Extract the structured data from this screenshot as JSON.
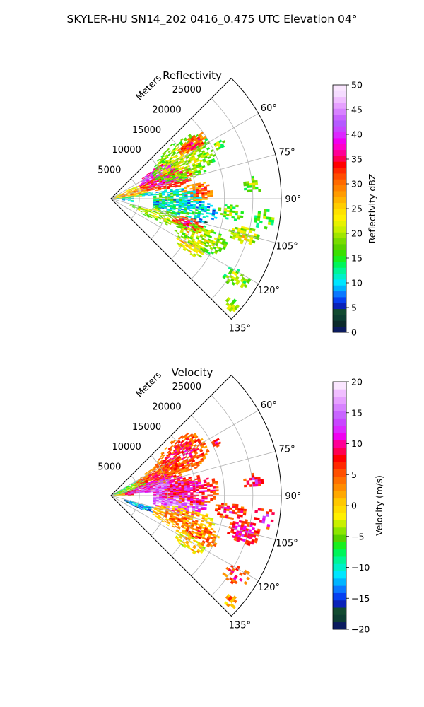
{
  "figure": {
    "title": "SKYLER-HU  SN14_202  0416_0.475 UTC Elevation 04°"
  },
  "chart_data": [
    {
      "type": "heatmap",
      "subtype": "polar-sector-ppi",
      "title": "Reflectivity",
      "range_axis_label": "Meters",
      "range_ticks": [
        5000,
        10000,
        15000,
        20000,
        25000
      ],
      "range_max": 30000,
      "azimuth_range_deg": [
        45,
        135
      ],
      "azimuth_ticks": [
        "60°",
        "75°",
        "90°",
        "105°",
        "120°",
        "135°"
      ],
      "azimuth_tick_values": [
        60,
        75,
        90,
        105,
        120,
        135
      ],
      "grid": true,
      "colorbar": {
        "label": "Reflectivity dBZ",
        "min": 0,
        "max": 50,
        "ticks": [
          0,
          5,
          10,
          15,
          20,
          25,
          30,
          35,
          40,
          45,
          50
        ],
        "colors": [
          "#0b1b5e",
          "#0b2a2a",
          "#0d3d32",
          "#124a30",
          "#0a22b8",
          "#0640f0",
          "#0a78ff",
          "#00b4ff",
          "#00e6ff",
          "#00f0c8",
          "#00f596",
          "#00f55a",
          "#19ef1e",
          "#3ae000",
          "#58d200",
          "#78dc00",
          "#a0e600",
          "#c8f000",
          "#e6f200",
          "#fff000",
          "#ffe100",
          "#ffcd00",
          "#ffb400",
          "#ff9b00",
          "#ff8200",
          "#ff6a00",
          "#ff4b00",
          "#ff2800",
          "#ff0000",
          "#ff0050",
          "#ff0096",
          "#ff00c8",
          "#f000f0",
          "#dc28ff",
          "#c846ff",
          "#b45aff",
          "#c864ff",
          "#d782ff",
          "#e6a0ff",
          "#f0beff",
          "#f5dcff",
          "#fae6ff"
        ]
      },
      "echoes": [
        {
          "r": 3000,
          "az": 75,
          "dr": 4000,
          "daz": 12,
          "value": 28,
          "density": 0.8
        },
        {
          "r": 9000,
          "az": 63,
          "dr": 4000,
          "daz": 8,
          "value": 42,
          "density": 0.95
        },
        {
          "r": 10000,
          "az": 72,
          "dr": 5000,
          "daz": 8,
          "value": 37,
          "density": 0.9
        },
        {
          "r": 14000,
          "az": 62,
          "dr": 6000,
          "daz": 14,
          "value": 22,
          "density": 0.7
        },
        {
          "r": 17000,
          "az": 56,
          "dr": 3000,
          "daz": 4,
          "value": 34,
          "density": 0.9
        },
        {
          "r": 15000,
          "az": 85,
          "dr": 3000,
          "daz": 6,
          "value": 33,
          "density": 0.8
        },
        {
          "r": 8000,
          "az": 90,
          "dr": 8000,
          "daz": 10,
          "value": 15,
          "density": 0.7
        },
        {
          "r": 12000,
          "az": 98,
          "dr": 7000,
          "daz": 8,
          "value": 13,
          "density": 0.6
        },
        {
          "r": 8000,
          "az": 108,
          "dr": 5000,
          "daz": 8,
          "value": 22,
          "density": 0.6
        },
        {
          "r": 14000,
          "az": 108,
          "dr": 3000,
          "daz": 5,
          "value": 36,
          "density": 0.9
        },
        {
          "r": 17000,
          "az": 113,
          "dr": 5000,
          "daz": 7,
          "value": 22,
          "density": 0.6
        },
        {
          "r": 16000,
          "az": 121,
          "dr": 3000,
          "daz": 4,
          "value": 26,
          "density": 0.7
        },
        {
          "r": 24000,
          "az": 105,
          "dr": 3000,
          "daz": 4,
          "value": 24,
          "density": 0.7
        },
        {
          "r": 21000,
          "az": 96,
          "dr": 2500,
          "daz": 4,
          "value": 20,
          "density": 0.6
        },
        {
          "r": 27000,
          "az": 97,
          "dr": 2000,
          "daz": 4,
          "value": 20,
          "density": 0.5
        },
        {
          "r": 25000,
          "az": 84,
          "dr": 2000,
          "daz": 3,
          "value": 20,
          "density": 0.5
        },
        {
          "r": 26000,
          "az": 122,
          "dr": 2500,
          "daz": 4,
          "value": 20,
          "density": 0.6
        },
        {
          "r": 28000,
          "az": 131,
          "dr": 1500,
          "daz": 2,
          "value": 22,
          "density": 0.8
        },
        {
          "r": 21000,
          "az": 63,
          "dr": 1500,
          "daz": 2,
          "value": 20,
          "density": 0.6
        }
      ],
      "clear_holes": [
        {
          "r": 5500,
          "az": 95,
          "dr": 2000,
          "daz": 10
        }
      ]
    },
    {
      "type": "heatmap",
      "subtype": "polar-sector-ppi",
      "title": "Velocity",
      "range_axis_label": "Meters",
      "range_ticks": [
        5000,
        10000,
        15000,
        20000,
        25000
      ],
      "range_max": 30000,
      "azimuth_range_deg": [
        45,
        135
      ],
      "azimuth_ticks": [
        "60°",
        "75°",
        "90°",
        "105°",
        "120°",
        "135°"
      ],
      "azimuth_tick_values": [
        60,
        75,
        90,
        105,
        120,
        135
      ],
      "grid": true,
      "colorbar": {
        "label": "Velocity (m/s)",
        "min": -20,
        "max": 20,
        "ticks": [
          -20,
          -15,
          -10,
          -5,
          0,
          5,
          10,
          15,
          20
        ],
        "colors": [
          "#0b1b5e",
          "#0d3d32",
          "#124a30",
          "#0a22b8",
          "#0640f0",
          "#0a78ff",
          "#00b4ff",
          "#00e6ff",
          "#00f0c8",
          "#00f596",
          "#00f55a",
          "#19ef1e",
          "#58d200",
          "#8ce600",
          "#c8f000",
          "#fff000",
          "#ffdc00",
          "#ffc800",
          "#ffa800",
          "#ff8c00",
          "#ff7000",
          "#ff5000",
          "#ff2800",
          "#ff0000",
          "#ff0050",
          "#ff0096",
          "#f000f0",
          "#dc28ff",
          "#c846ff",
          "#c864ff",
          "#d782ff",
          "#e6a0ff",
          "#f0beff",
          "#fae6ff"
        ]
      },
      "echoes": [
        {
          "r": 3000,
          "az": 70,
          "dr": 4000,
          "daz": 10,
          "value": -4,
          "density": 0.85
        },
        {
          "r": 4000,
          "az": 84,
          "dr": 4000,
          "daz": 6,
          "value": 3,
          "density": 0.8
        },
        {
          "r": 9000,
          "az": 66,
          "dr": 5000,
          "daz": 10,
          "value": 7,
          "density": 0.9
        },
        {
          "r": 8000,
          "az": 82,
          "dr": 6000,
          "daz": 12,
          "value": 14,
          "density": 0.95
        },
        {
          "r": 11000,
          "az": 96,
          "dr": 6000,
          "daz": 8,
          "value": 16,
          "density": 0.9
        },
        {
          "r": 5000,
          "az": 108,
          "dr": 3000,
          "daz": 6,
          "value": -11,
          "density": 0.8
        },
        {
          "r": 14000,
          "az": 60,
          "dr": 5000,
          "daz": 12,
          "value": 8,
          "density": 0.8
        },
        {
          "r": 14000,
          "az": 86,
          "dr": 5000,
          "daz": 10,
          "value": 10,
          "density": 0.7
        },
        {
          "r": 13000,
          "az": 108,
          "dr": 6000,
          "daz": 10,
          "value": 4,
          "density": 0.7
        },
        {
          "r": 17000,
          "az": 113,
          "dr": 4000,
          "daz": 6,
          "value": 6,
          "density": 0.6
        },
        {
          "r": 16000,
          "az": 121,
          "dr": 3000,
          "daz": 4,
          "value": 2,
          "density": 0.7
        },
        {
          "r": 24000,
          "az": 105,
          "dr": 3000,
          "daz": 5,
          "value": 10,
          "density": 0.8
        },
        {
          "r": 21000,
          "az": 97,
          "dr": 3000,
          "daz": 4,
          "value": 9,
          "density": 0.6
        },
        {
          "r": 27000,
          "az": 98,
          "dr": 2000,
          "daz": 4,
          "value": 11,
          "density": 0.5
        },
        {
          "r": 26000,
          "az": 122,
          "dr": 2500,
          "daz": 4,
          "value": 8,
          "density": 0.6
        },
        {
          "r": 28000,
          "az": 131,
          "dr": 1500,
          "daz": 2,
          "value": 5,
          "density": 0.8
        },
        {
          "r": 21000,
          "az": 63,
          "dr": 1500,
          "daz": 2,
          "value": 9,
          "density": 0.6
        },
        {
          "r": 25000,
          "az": 84,
          "dr": 2000,
          "daz": 3,
          "value": 10,
          "density": 0.5
        }
      ],
      "clear_holes": [
        {
          "r": 5500,
          "az": 95,
          "dr": 2000,
          "daz": 10
        }
      ]
    }
  ]
}
